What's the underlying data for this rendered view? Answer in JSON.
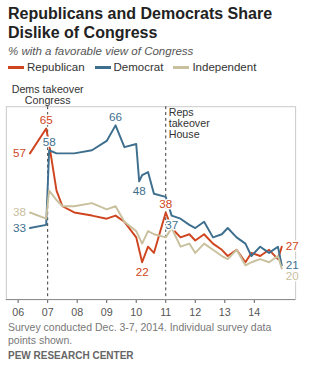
{
  "chart_data": {
    "type": "line",
    "title": "Republicans and Democrats Share Dislike of Congress",
    "subtitle": "% with a favorable view of Congress",
    "x": [
      2006.4,
      2006.95,
      2007.05,
      2007.3,
      2007.5,
      2007.9,
      2008.5,
      2009.0,
      2009.3,
      2009.6,
      2010.0,
      2010.1,
      2010.2,
      2010.4,
      2010.6,
      2011.0,
      2011.2,
      2011.5,
      2011.8,
      2012.0,
      2012.3,
      2012.6,
      2012.9,
      2013.1,
      2013.4,
      2013.7,
      2013.9,
      2014.2,
      2014.5,
      2014.8,
      2014.93
    ],
    "series": [
      {
        "name": "Republican",
        "color": "#cf4520",
        "values": [
          57,
          65,
          60,
          45,
          40,
          38,
          37,
          36,
          37,
          35,
          30,
          26,
          22,
          27,
          25,
          38,
          33,
          30,
          31,
          29,
          31,
          28,
          26,
          24,
          26,
          22,
          25,
          24,
          26,
          23,
          27
        ]
      },
      {
        "name": "Democrat",
        "color": "#3e6f8e",
        "values": [
          33,
          34,
          58,
          57,
          57,
          57,
          58,
          61,
          66,
          59,
          60,
          48,
          50,
          51,
          44,
          43,
          37,
          36,
          34,
          33,
          35,
          30,
          31,
          33,
          30,
          28,
          24,
          27,
          25,
          27,
          21
        ]
      },
      {
        "name": "Independent",
        "color": "#c9c09e",
        "values": [
          38,
          36,
          45,
          42,
          40,
          40,
          41,
          39,
          40,
          35,
          32,
          30,
          28,
          32,
          31,
          30,
          33,
          27,
          28,
          25,
          28,
          26,
          24,
          23,
          26,
          21,
          22,
          23,
          22,
          24,
          20
        ]
      }
    ],
    "xlim": [
      2005.6,
      2015.4
    ],
    "xticks": [
      {
        "value": 2006,
        "label": "06"
      },
      {
        "value": 2007,
        "label": "07"
      },
      {
        "value": 2008,
        "label": "08"
      },
      {
        "value": 2009,
        "label": "09"
      },
      {
        "value": 2010,
        "label": "10"
      },
      {
        "value": 2011,
        "label": "11"
      },
      {
        "value": 2012,
        "label": "12"
      },
      {
        "value": 2013,
        "label": "13"
      },
      {
        "value": 2014,
        "label": "14"
      }
    ],
    "ylim": [
      10,
      72
    ],
    "tick_labels": "x",
    "grid": false,
    "legend": "top",
    "events": [
      {
        "x": 2007,
        "label": "Dems takeover\nCongress"
      },
      {
        "x": 2011,
        "label": "Reps\ntakeover\nHouse"
      }
    ],
    "annotations": [
      {
        "series": "Republican",
        "x": 2006.4,
        "y": 57,
        "text": "57"
      },
      {
        "series": "Republican",
        "x": 2006.95,
        "y": 65,
        "text": "65"
      },
      {
        "series": "Republican",
        "x": 2010.2,
        "y": 22,
        "text": "22"
      },
      {
        "series": "Republican",
        "x": 2011.0,
        "y": 38,
        "text": "38"
      },
      {
        "series": "Republican",
        "x": 2014.93,
        "y": 27,
        "text": "27"
      },
      {
        "series": "Democrat",
        "x": 2006.4,
        "y": 33,
        "text": "33"
      },
      {
        "series": "Democrat",
        "x": 2007.05,
        "y": 58,
        "text": "58"
      },
      {
        "series": "Democrat",
        "x": 2009.3,
        "y": 66,
        "text": "66"
      },
      {
        "series": "Democrat",
        "x": 2010.1,
        "y": 48,
        "text": "48"
      },
      {
        "series": "Democrat",
        "x": 2011.2,
        "y": 37,
        "text": "37"
      },
      {
        "series": "Democrat",
        "x": 2014.93,
        "y": 21,
        "text": "21"
      },
      {
        "series": "Independent",
        "x": 2006.4,
        "y": 38,
        "text": "38"
      },
      {
        "series": "Independent",
        "x": 2014.93,
        "y": 20,
        "text": "20"
      }
    ],
    "notes": "Survey conducted Dec. 3-7, 2014. Individual survey data points shown.",
    "source": "PEW RESEARCH CENTER"
  }
}
